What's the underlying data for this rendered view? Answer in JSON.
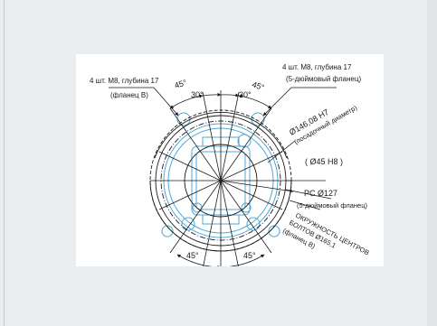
{
  "drawing": {
    "labels": {
      "bolt_m8_b": "4 шт. М8, глубина 17",
      "flange_b": "(фланец B)",
      "bolt_m8_5in": "4 шт. М8, глубина 17",
      "flange_5in": "(5-дюймовый фланец)",
      "pilot_dia": "Ø146,08 H7",
      "pilot_dia_note": "(посадочный диаметр)",
      "bore_dia": "( Ø45 H8 )",
      "pcd_5in": "PC Ø127",
      "pcd_5in_note": "(5-дюймовый фланец)",
      "bcd_line1": "ОКРУЖНОСТЬ ЦЕНТРОВ",
      "bcd_line2": "БОЛТОВ Ø165,1",
      "bcd_line3": "(фланец B)",
      "angle_45_tl": "45°",
      "angle_30_l": "30°",
      "angle_30_r": "30°",
      "angle_45_tr": "45°",
      "angle_45_bl": "45°",
      "angle_45_br": "45°"
    },
    "colors": {
      "line": "#1a1a1a",
      "part": "#4fa8d6",
      "background": "#ffffff",
      "frame": "#eaedf0"
    }
  }
}
